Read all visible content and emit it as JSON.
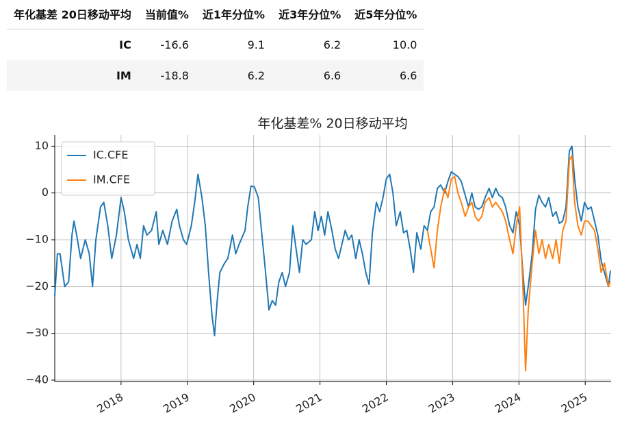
{
  "table": {
    "header": [
      "年化基差 20日移动平均",
      "当前值%",
      "近1年分位%",
      "近3年分位%",
      "近5年分位%"
    ],
    "rows": [
      [
        "IC",
        "-16.6",
        "9.1",
        "6.2",
        "10.0"
      ],
      [
        "IM",
        "-18.8",
        "6.2",
        "6.6",
        "6.6"
      ]
    ]
  },
  "chart_data": {
    "type": "line",
    "title": "年化基差% 20日移动平均",
    "x": [
      2017.0,
      2017.04,
      2017.08,
      2017.15,
      2017.21,
      2017.26,
      2017.29,
      2017.33,
      2017.39,
      2017.46,
      2017.52,
      2017.57,
      2017.62,
      2017.69,
      2017.74,
      2017.8,
      2017.86,
      2017.93,
      2018.0,
      2018.05,
      2018.11,
      2018.19,
      2018.24,
      2018.29,
      2018.34,
      2018.39,
      2018.46,
      2018.53,
      2018.57,
      2018.63,
      2018.7,
      2018.77,
      2018.84,
      2018.88,
      2018.94,
      2018.99,
      2019.06,
      2019.11,
      2019.16,
      2019.22,
      2019.27,
      2019.32,
      2019.37,
      2019.41,
      2019.45,
      2019.49,
      2019.56,
      2019.61,
      2019.68,
      2019.73,
      2019.78,
      2019.87,
      2019.91,
      2019.96,
      2020.01,
      2020.07,
      2020.11,
      2020.18,
      2020.23,
      2020.28,
      2020.33,
      2020.38,
      2020.43,
      2020.48,
      2020.54,
      2020.59,
      2020.64,
      2020.69,
      2020.74,
      2020.79,
      2020.87,
      2020.92,
      2020.97,
      2021.02,
      2021.07,
      2021.12,
      2021.18,
      2021.23,
      2021.28,
      2021.33,
      2021.38,
      2021.43,
      2021.48,
      2021.54,
      2021.59,
      2021.64,
      2021.69,
      2021.74,
      2021.79,
      2021.85,
      2021.9,
      2021.95,
      2022.0,
      2022.05,
      2022.1,
      2022.15,
      2022.21,
      2022.26,
      2022.31,
      2022.36,
      2022.41,
      2022.46,
      2022.52,
      2022.57,
      2022.62,
      2022.67,
      2022.72,
      2022.77,
      2022.82,
      2022.88,
      2022.93,
      2022.98,
      2023.03,
      2023.08,
      2023.13,
      2023.19,
      2023.24,
      2023.29,
      2023.34,
      2023.39,
      2023.44,
      2023.49,
      2023.55,
      2023.6,
      2023.65,
      2023.7,
      2023.75,
      2023.8,
      2023.86,
      2023.91,
      2023.96,
      2024.01,
      2024.06,
      2024.1,
      2024.14,
      2024.2,
      2024.25,
      2024.3,
      2024.35,
      2024.4,
      2024.45,
      2024.51,
      2024.56,
      2024.61,
      2024.66,
      2024.71,
      2024.76,
      2024.8,
      2024.84,
      2024.89,
      2024.94,
      2024.99,
      2025.04,
      2025.09,
      2025.14,
      2025.19,
      2025.24,
      2025.29,
      2025.35,
      2025.38
    ],
    "series": [
      {
        "name": "IC.CFE",
        "color": "#1f77b4",
        "values": [
          -22,
          -13,
          -13,
          -20,
          -19,
          -9,
          -6,
          -9,
          -14,
          -10,
          -13,
          -20,
          -10,
          -3,
          -2,
          -7,
          -14,
          -9,
          -1,
          -4,
          -10,
          -14,
          -11,
          -14,
          -7,
          -9,
          -8,
          -4,
          -11,
          -8,
          -11,
          -6,
          -3.5,
          -7,
          -10,
          -11,
          -7,
          -2,
          4,
          -1,
          -7,
          -17,
          -26,
          -30.5,
          -23,
          -17,
          -15,
          -14,
          -9,
          -13,
          -11,
          -8,
          -3,
          1.5,
          1.3,
          -1,
          -7,
          -17,
          -25,
          -23,
          -24,
          -19,
          -17,
          -20,
          -17,
          -7,
          -12,
          -17,
          -10,
          -11,
          -10,
          -4,
          -8,
          -5,
          -9,
          -4,
          -8,
          -12,
          -14,
          -11,
          -8,
          -10,
          -9,
          -14,
          -10,
          -13,
          -17,
          -19.5,
          -8.5,
          -2,
          -4,
          -1,
          3,
          4,
          0,
          -7,
          -4,
          -8.5,
          -8,
          -12,
          -17,
          -8.5,
          -12,
          -7,
          -8,
          -4,
          -3,
          1,
          1.7,
          0,
          2.5,
          4.5,
          4,
          3.5,
          2.5,
          -0.5,
          -3,
          0,
          -3,
          -3.5,
          -3,
          -1,
          1,
          -1,
          1,
          -0.5,
          -1,
          -3,
          -7,
          -8.5,
          -4,
          -7,
          -17,
          -24,
          -20,
          -13,
          -3.5,
          -0.5,
          -2,
          -3,
          -1,
          -5,
          -4,
          -6.5,
          -6,
          -3,
          9,
          10,
          3,
          -3,
          -6,
          -2,
          -3.5,
          -3,
          -6,
          -9,
          -14.5,
          -17,
          -20,
          -16.6
        ]
      },
      {
        "name": "IM.CFE",
        "color": "#ff7f0e",
        "values": [
          null,
          null,
          null,
          null,
          null,
          null,
          null,
          null,
          null,
          null,
          null,
          null,
          null,
          null,
          null,
          null,
          null,
          null,
          null,
          null,
          null,
          null,
          null,
          null,
          null,
          null,
          null,
          null,
          null,
          null,
          null,
          null,
          null,
          null,
          null,
          null,
          null,
          null,
          null,
          null,
          null,
          null,
          null,
          null,
          null,
          null,
          null,
          null,
          null,
          null,
          null,
          null,
          null,
          null,
          null,
          null,
          null,
          null,
          null,
          null,
          null,
          null,
          null,
          null,
          null,
          null,
          null,
          null,
          null,
          null,
          null,
          null,
          null,
          null,
          null,
          null,
          null,
          null,
          null,
          null,
          null,
          null,
          null,
          null,
          null,
          null,
          null,
          null,
          null,
          null,
          null,
          null,
          null,
          null,
          null,
          null,
          null,
          null,
          null,
          null,
          null,
          null,
          null,
          null,
          -8,
          -12,
          -16,
          -8,
          -3,
          1,
          -1,
          3,
          3.5,
          0,
          -2,
          -5,
          -3,
          -2,
          -5,
          -6,
          -5,
          -2,
          -1,
          -3,
          -2,
          -3,
          -4,
          -6,
          -10,
          -13,
          -7,
          -3,
          -20,
          -38,
          -25,
          -15,
          -8,
          -13,
          -10,
          -14,
          -11,
          -14,
          -10,
          -15,
          -8,
          -6,
          7,
          8,
          -2,
          -7,
          -9,
          -6,
          -6,
          -7,
          -8,
          -12,
          -17,
          -15,
          -20,
          -18.8
        ]
      }
    ],
    "xlim": [
      2017.0,
      2025.39
    ],
    "xticks": [
      2018,
      2019,
      2020,
      2021,
      2022,
      2023,
      2024,
      2025
    ],
    "ylim": [
      -40.3,
      12.4
    ],
    "yticks": [
      10,
      0,
      {
        "value": -10,
        "label": "−10"
      },
      {
        "value": -20,
        "label": "−20"
      },
      {
        "value": -30,
        "label": "−30"
      },
      {
        "value": -40,
        "label": "−40"
      }
    ],
    "grid": true,
    "legend": "upper left"
  }
}
